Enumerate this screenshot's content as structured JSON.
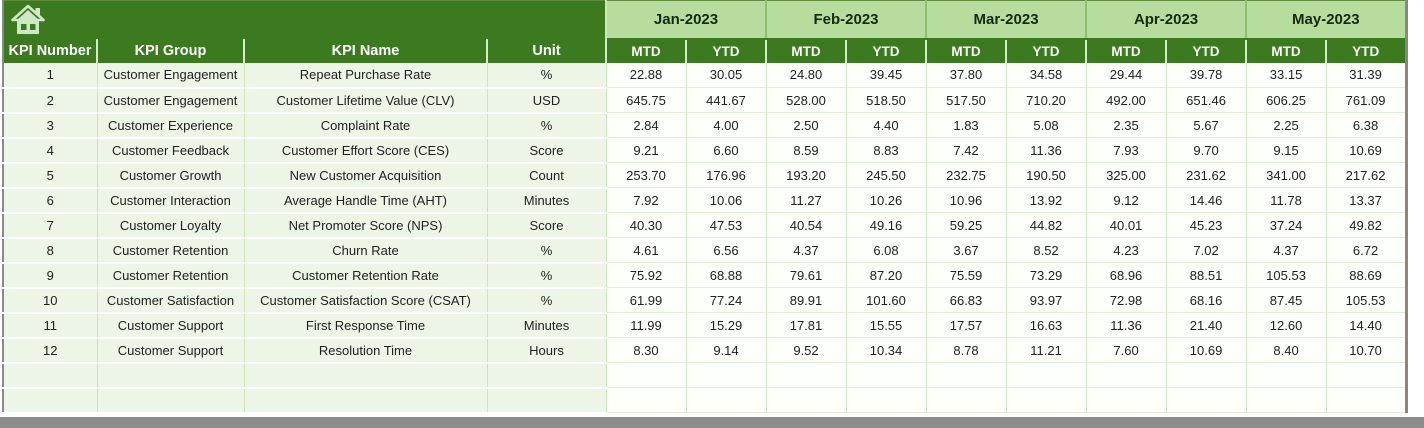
{
  "table": {
    "left_headers": [
      "KPI Number",
      "KPI Group",
      "KPI Name",
      "Unit"
    ],
    "months": [
      "Jan-2023",
      "Feb-2023",
      "Mar-2023",
      "Apr-2023",
      "May-2023"
    ],
    "sub_headers": [
      "MTD",
      "YTD"
    ],
    "rows": [
      {
        "num": "1",
        "group": "Customer Engagement",
        "name": "Repeat Purchase Rate",
        "unit": "%",
        "values": [
          "22.88",
          "30.05",
          "24.80",
          "39.45",
          "37.80",
          "34.58",
          "29.44",
          "39.78",
          "33.15",
          "31.39"
        ]
      },
      {
        "num": "2",
        "group": "Customer Engagement",
        "name": "Customer Lifetime Value (CLV)",
        "unit": "USD",
        "values": [
          "645.75",
          "441.67",
          "528.00",
          "518.50",
          "517.50",
          "710.20",
          "492.00",
          "651.46",
          "606.25",
          "761.09"
        ]
      },
      {
        "num": "3",
        "group": "Customer Experience",
        "name": "Complaint Rate",
        "unit": "%",
        "values": [
          "2.84",
          "4.00",
          "2.50",
          "4.40",
          "1.83",
          "5.08",
          "2.35",
          "5.67",
          "2.25",
          "6.38"
        ]
      },
      {
        "num": "4",
        "group": "Customer Feedback",
        "name": "Customer Effort Score (CES)",
        "unit": "Score",
        "values": [
          "9.21",
          "6.60",
          "8.59",
          "8.83",
          "7.42",
          "11.36",
          "7.93",
          "9.70",
          "9.15",
          "10.69"
        ]
      },
      {
        "num": "5",
        "group": "Customer Growth",
        "name": "New Customer Acquisition",
        "unit": "Count",
        "values": [
          "253.70",
          "176.96",
          "193.20",
          "245.50",
          "232.75",
          "190.50",
          "325.00",
          "231.62",
          "341.00",
          "217.62"
        ]
      },
      {
        "num": "6",
        "group": "Customer Interaction",
        "name": "Average Handle Time (AHT)",
        "unit": "Minutes",
        "values": [
          "7.92",
          "10.06",
          "11.27",
          "10.26",
          "10.96",
          "13.92",
          "9.12",
          "14.46",
          "11.78",
          "13.37"
        ]
      },
      {
        "num": "7",
        "group": "Customer Loyalty",
        "name": "Net Promoter Score (NPS)",
        "unit": "Score",
        "values": [
          "40.30",
          "47.53",
          "40.54",
          "49.16",
          "59.25",
          "44.82",
          "40.01",
          "45.23",
          "37.24",
          "49.82"
        ]
      },
      {
        "num": "8",
        "group": "Customer Retention",
        "name": "Churn Rate",
        "unit": "%",
        "values": [
          "4.61",
          "6.56",
          "4.37",
          "6.08",
          "3.67",
          "8.52",
          "4.23",
          "7.02",
          "4.37",
          "6.72"
        ]
      },
      {
        "num": "9",
        "group": "Customer Retention",
        "name": "Customer Retention Rate",
        "unit": "%",
        "values": [
          "75.92",
          "68.88",
          "79.61",
          "87.20",
          "75.59",
          "73.29",
          "68.96",
          "88.51",
          "105.53",
          "88.69"
        ]
      },
      {
        "num": "10",
        "group": "Customer Satisfaction",
        "name": "Customer Satisfaction Score (CSAT)",
        "unit": "%",
        "values": [
          "61.99",
          "77.24",
          "89.91",
          "101.60",
          "66.83",
          "93.97",
          "72.98",
          "68.16",
          "87.45",
          "105.53"
        ]
      },
      {
        "num": "11",
        "group": "Customer Support",
        "name": "First Response Time",
        "unit": "Minutes",
        "values": [
          "11.99",
          "15.29",
          "17.81",
          "15.55",
          "17.57",
          "16.63",
          "11.36",
          "21.40",
          "12.60",
          "14.40"
        ]
      },
      {
        "num": "12",
        "group": "Customer Support",
        "name": "Resolution Time",
        "unit": "Hours",
        "values": [
          "8.30",
          "9.14",
          "9.52",
          "10.34",
          "8.78",
          "11.21",
          "7.60",
          "10.69",
          "8.40",
          "10.70"
        ]
      }
    ],
    "empty_row_count": 2
  },
  "colors": {
    "header_dark_green": "#3b7a1e",
    "month_light_green": "#b6dd9e",
    "row_light_green": "#edf6e6",
    "grid_green": "#d6e9c4",
    "bottom_bar_gray": "#8c8c8c",
    "home_icon_pale": "#cfe9c7"
  }
}
